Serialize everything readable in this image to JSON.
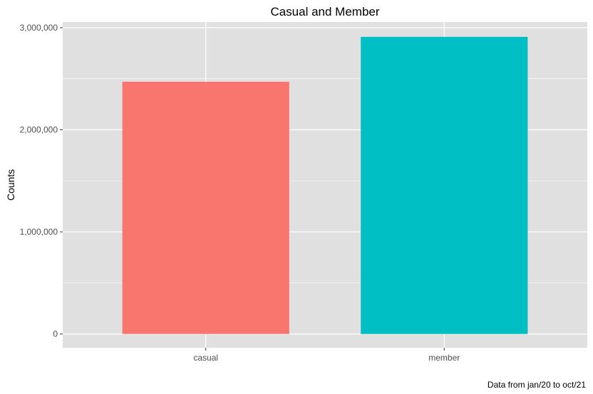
{
  "chart_data": {
    "type": "bar",
    "title": "Casual and Member",
    "xlabel": "",
    "ylabel": "Counts",
    "caption": "Data from jan/20 to oct/21",
    "categories": [
      "casual",
      "member"
    ],
    "values": [
      2470000,
      2910000
    ],
    "colors": [
      "#F8766D",
      "#00BFC4"
    ],
    "ylim": [
      -135000,
      3055000
    ],
    "yticks": [
      0,
      1000000,
      2000000,
      3000000
    ],
    "ytick_labels": [
      "0",
      "1,000,000",
      "2,000,000",
      "3,000,000"
    ],
    "grid": true,
    "legend": "none",
    "panel_background": "#E0E0E0",
    "gridline_color": "#FFFFFF"
  }
}
